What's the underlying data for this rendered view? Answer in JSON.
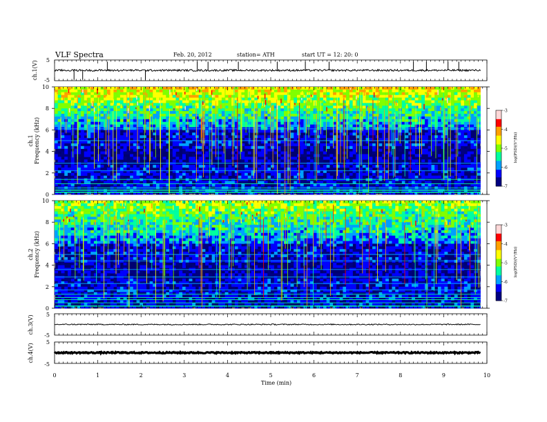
{
  "header": {
    "title": "VLF  Spectra",
    "date": "Feb. 20, 2012",
    "station": "station= ATH",
    "start": "start  UT  =     12: 20: 0"
  },
  "chart_data": [
    {
      "type": "line",
      "panel": "ch1-waveform",
      "ylabel": "ch.1(V)",
      "ylim": [
        -5,
        5
      ],
      "yticks": [
        "5",
        "-5"
      ],
      "baseline": 0,
      "spikes_at_min": [
        0.45,
        0.65,
        1.22,
        2.1,
        3.3,
        3.55,
        4.25,
        5.15,
        5.8,
        6.35,
        8.3,
        8.6,
        9.1,
        9.35
      ]
    },
    {
      "type": "heatmap",
      "panel": "ch1-spectrogram",
      "ylabel": [
        "ch.1",
        "Frequency  (kHz)"
      ],
      "ylim": [
        0,
        10
      ],
      "yticks": [
        "0",
        "2",
        "4",
        "6",
        "8",
        "10"
      ],
      "colorbar": {
        "label": "log(PSD)(V²/Hz)",
        "range": [
          -7,
          -3
        ],
        "ticks": [
          "-3",
          "-4",
          "-5",
          "-6",
          "-7"
        ],
        "colors": [
          "#000080",
          "#0000ff",
          "#00a0ff",
          "#00ffa0",
          "#80ff00",
          "#ffff00",
          "#ffa000",
          "#ff0000",
          "#ffd8d8"
        ]
      },
      "bands_khz": [
        0.2,
        0.4,
        0.6,
        1.0,
        1.4,
        2.2,
        2.9,
        5.0,
        6.1
      ]
    },
    {
      "type": "heatmap",
      "panel": "ch2-spectrogram",
      "ylabel": [
        "ch.2",
        "Frequency  (kHz)"
      ],
      "ylim": [
        0,
        10
      ],
      "yticks": [
        "0",
        "2",
        "4",
        "6",
        "8",
        "10"
      ],
      "colorbar": {
        "label": "log(PSD)(V²/Hz)",
        "range": [
          -7,
          -3
        ],
        "ticks": [
          "-3",
          "-4",
          "-5",
          "-6",
          "-7"
        ],
        "colors": [
          "#000080",
          "#0000ff",
          "#00a0ff",
          "#00ffa0",
          "#80ff00",
          "#ffff00",
          "#ffa000",
          "#ff0000",
          "#ffd8d8"
        ]
      },
      "bands_khz": [
        0.2,
        0.5,
        0.8,
        1.0,
        1.3,
        1.7,
        2.3,
        2.9,
        3.6,
        4.4,
        5.0
      ]
    },
    {
      "type": "line",
      "panel": "ch3-waveform",
      "ylabel": "ch.3(V)",
      "ylim": [
        -5,
        5
      ],
      "yticks": [
        "5",
        "-5"
      ],
      "baseline": 0
    },
    {
      "type": "line",
      "panel": "ch4-waveform",
      "ylabel": "ch.4(V)",
      "ylim": [
        -5,
        5
      ],
      "yticks": [
        "5",
        "-5"
      ],
      "baseline": 0
    }
  ],
  "xaxis": {
    "label": "Time  (min)",
    "xlim": [
      0,
      10
    ],
    "ticks": [
      "0",
      "1",
      "2",
      "3",
      "4",
      "5",
      "6",
      "7",
      "8",
      "9",
      "10"
    ],
    "data_end_min": 9.85
  }
}
